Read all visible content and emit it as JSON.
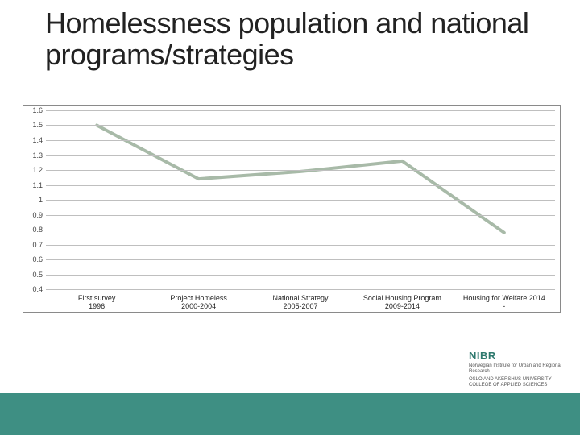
{
  "title": "Homelessness population and national programs/strategies",
  "chart": {
    "type": "line",
    "background_color": "#ffffff",
    "border_color": "#8a8a8a",
    "grid_color": "#bfbfbf",
    "line_color": "#a8baa8",
    "line_width": 4,
    "ylim": [
      0.4,
      1.6
    ],
    "ytick_step": 0.1,
    "yticks": [
      "1.6",
      "1.5",
      "1.4",
      "1.3",
      "1.2",
      "1.1",
      "1",
      "0.9",
      "0.8",
      "0.7",
      "0.6",
      "0.5",
      "0.4"
    ],
    "categories": [
      "First survey 1996",
      "Project Homeless 2000-2004",
      "National Strategy 2005-2007",
      "Social Housing Program 2009-2014",
      "Housing for Welfare 2014 -"
    ],
    "values": [
      1.5,
      1.14,
      1.19,
      1.26,
      0.78
    ],
    "label_fontsize": 9,
    "title_fontsize": 36
  },
  "footer": {
    "bar_color": "#3e8f83",
    "logo_text": "NIBR",
    "logo_sub1": "Norwegian Institute for Urban and Regional Research",
    "logo_sub2": "OSLO AND AKERSHUS UNIVERSITY COLLEGE OF APPLIED SCIENCES"
  }
}
